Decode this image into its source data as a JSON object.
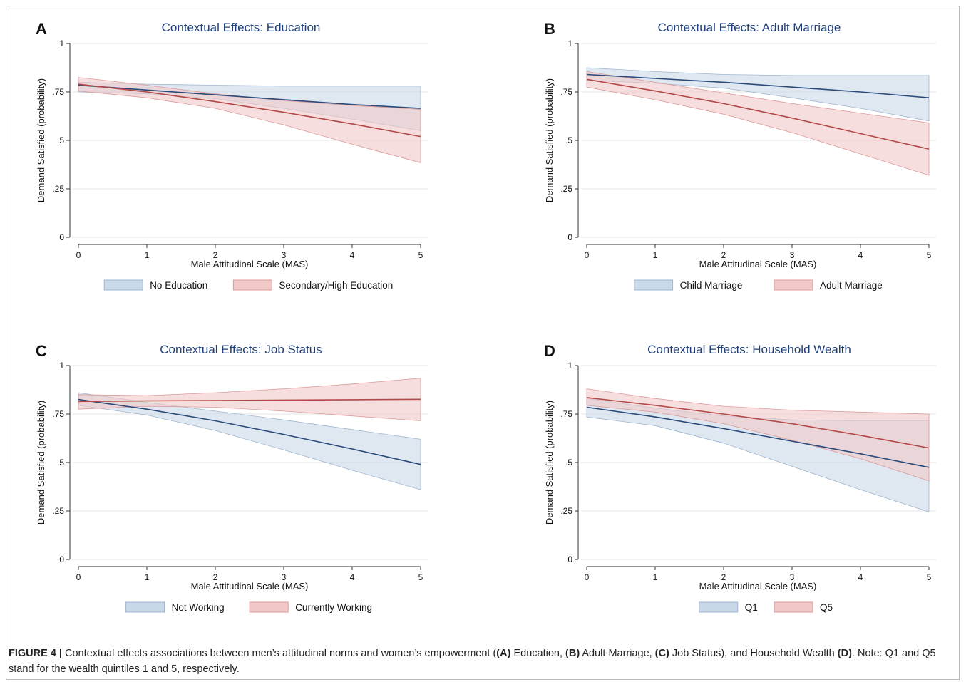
{
  "figure": {
    "caption_label": "FIGURE 4 |",
    "caption_parts": [
      {
        "text": " Contextual effects associations between men’s attitudinal norms and women’s empowerment (",
        "bold": false
      },
      {
        "text": "(A)",
        "bold": true
      },
      {
        "text": " Education, ",
        "bold": false
      },
      {
        "text": "(B)",
        "bold": true
      },
      {
        "text": " Adult Marriage, ",
        "bold": false
      },
      {
        "text": "(C)",
        "bold": true
      },
      {
        "text": " Job Status), and Household Wealth ",
        "bold": false
      },
      {
        "text": "(D)",
        "bold": true
      },
      {
        "text": ". Note: Q1 and Q5 stand for the wealth quintiles 1 and 5, respectively.",
        "bold": false
      }
    ]
  },
  "colors": {
    "blue_line": "#2a4a7a",
    "blue_band": "#c9d8e8",
    "blue_band_edge": "#9fb6cf",
    "red_line": "#b34848",
    "red_band": "#f1c8c8",
    "red_band_edge": "#dc9a9a",
    "title": "#1f3f78",
    "grid": "#e4e4e4"
  },
  "chart_data": [
    {
      "panel_letter": "A",
      "type": "line",
      "title": "Contextual Effects: Education",
      "xlabel": "Male Attitudinal Scale (MAS)",
      "ylabel": "Demand Satisfied (probability)",
      "xlim": [
        0,
        5
      ],
      "ylim": [
        0,
        1
      ],
      "x_ticks": [
        0,
        1,
        2,
        3,
        4,
        5
      ],
      "x_tick_labels": [
        "0",
        "1",
        "2",
        "3",
        "4",
        "5"
      ],
      "y_ticks": [
        0,
        0.25,
        0.5,
        0.75,
        1
      ],
      "y_tick_labels": [
        "0",
        ".25",
        ".5",
        ".75",
        "1"
      ],
      "grid": true,
      "legend_position": "bottom",
      "series": [
        {
          "name": "No Education",
          "color": "blue",
          "x": [
            0,
            1,
            2,
            3,
            4,
            5
          ],
          "y": [
            0.785,
            0.76,
            0.735,
            0.71,
            0.685,
            0.665
          ],
          "lower": [
            0.75,
            0.74,
            0.715,
            0.665,
            0.61,
            0.55
          ],
          "upper": [
            0.8,
            0.79,
            0.785,
            0.78,
            0.78,
            0.78
          ]
        },
        {
          "name": "Secondary/High Education",
          "color": "red",
          "x": [
            0,
            1,
            2,
            3,
            4,
            5
          ],
          "y": [
            0.79,
            0.75,
            0.7,
            0.645,
            0.585,
            0.52
          ],
          "lower": [
            0.755,
            0.72,
            0.665,
            0.58,
            0.48,
            0.385
          ],
          "upper": [
            0.825,
            0.785,
            0.74,
            0.705,
            0.68,
            0.66
          ]
        }
      ]
    },
    {
      "panel_letter": "B",
      "type": "line",
      "title": "Contextual Effects: Adult Marriage",
      "xlabel": "Male Attitudinal Scale (MAS)",
      "ylabel": "Demand Satisfied (probability)",
      "xlim": [
        0,
        5
      ],
      "ylim": [
        0,
        1
      ],
      "x_ticks": [
        0,
        1,
        2,
        3,
        4,
        5
      ],
      "x_tick_labels": [
        "0",
        "1",
        "2",
        "3",
        "4",
        "5"
      ],
      "y_ticks": [
        0,
        0.25,
        0.5,
        0.75,
        1
      ],
      "y_tick_labels": [
        "0",
        ".25",
        ".5",
        ".75",
        "1"
      ],
      "grid": true,
      "legend_position": "bottom",
      "series": [
        {
          "name": "Child Marriage",
          "color": "blue",
          "x": [
            0,
            1,
            2,
            3,
            4,
            5
          ],
          "y": [
            0.84,
            0.82,
            0.8,
            0.775,
            0.75,
            0.72
          ],
          "lower": [
            0.81,
            0.795,
            0.77,
            0.72,
            0.665,
            0.6
          ],
          "upper": [
            0.875,
            0.855,
            0.84,
            0.835,
            0.835,
            0.835
          ]
        },
        {
          "name": "Adult Marriage",
          "color": "red",
          "x": [
            0,
            1,
            2,
            3,
            4,
            5
          ],
          "y": [
            0.815,
            0.755,
            0.69,
            0.615,
            0.535,
            0.455
          ],
          "lower": [
            0.775,
            0.71,
            0.635,
            0.54,
            0.43,
            0.32
          ],
          "upper": [
            0.855,
            0.8,
            0.745,
            0.69,
            0.64,
            0.59
          ]
        }
      ]
    },
    {
      "panel_letter": "C",
      "type": "line",
      "title": "Contextual Effects: Job Status",
      "xlabel": "Male Attitudinal Scale (MAS)",
      "ylabel": "Demand Satisfied (probability)",
      "xlim": [
        0,
        5
      ],
      "ylim": [
        0,
        1
      ],
      "x_ticks": [
        0,
        1,
        2,
        3,
        4,
        5
      ],
      "x_tick_labels": [
        "0",
        "1",
        "2",
        "3",
        "4",
        "5"
      ],
      "y_ticks": [
        0,
        0.25,
        0.5,
        0.75,
        1
      ],
      "y_tick_labels": [
        "0",
        ".25",
        ".5",
        ".75",
        "1"
      ],
      "grid": true,
      "legend_position": "bottom",
      "series": [
        {
          "name": "Not Working",
          "color": "blue",
          "x": [
            0,
            1,
            2,
            3,
            4,
            5
          ],
          "y": [
            0.825,
            0.775,
            0.715,
            0.645,
            0.57,
            0.49
          ],
          "lower": [
            0.795,
            0.745,
            0.665,
            0.565,
            0.46,
            0.36
          ],
          "upper": [
            0.86,
            0.81,
            0.765,
            0.72,
            0.67,
            0.62
          ]
        },
        {
          "name": "Currently Working",
          "color": "red",
          "x": [
            0,
            1,
            2,
            3,
            4,
            5
          ],
          "y": [
            0.815,
            0.818,
            0.82,
            0.822,
            0.824,
            0.826
          ],
          "lower": [
            0.775,
            0.79,
            0.785,
            0.765,
            0.74,
            0.715
          ],
          "upper": [
            0.85,
            0.845,
            0.86,
            0.88,
            0.905,
            0.935
          ]
        }
      ]
    },
    {
      "panel_letter": "D",
      "type": "line",
      "title": "Contextual Effects: Household Wealth",
      "xlabel": "Male Attitudinal Scale (MAS)",
      "ylabel": "Demand Satisfied (probability)",
      "xlim": [
        0,
        5
      ],
      "ylim": [
        0,
        1
      ],
      "x_ticks": [
        0,
        1,
        2,
        3,
        4,
        5
      ],
      "x_tick_labels": [
        "0",
        "1",
        "2",
        "3",
        "4",
        "5"
      ],
      "y_ticks": [
        0,
        0.25,
        0.5,
        0.75,
        1
      ],
      "y_tick_labels": [
        "0",
        ".25",
        ".5",
        ".75",
        "1"
      ],
      "grid": true,
      "legend_position": "bottom",
      "series": [
        {
          "name": "Q1",
          "color": "blue",
          "x": [
            0,
            1,
            2,
            3,
            4,
            5
          ],
          "y": [
            0.785,
            0.735,
            0.675,
            0.61,
            0.545,
            0.475
          ],
          "lower": [
            0.735,
            0.69,
            0.6,
            0.48,
            0.36,
            0.245
          ],
          "upper": [
            0.83,
            0.78,
            0.74,
            0.72,
            0.715,
            0.715
          ]
        },
        {
          "name": "Q5",
          "color": "red",
          "x": [
            0,
            1,
            2,
            3,
            4,
            5
          ],
          "y": [
            0.835,
            0.795,
            0.75,
            0.7,
            0.64,
            0.575
          ],
          "lower": [
            0.795,
            0.76,
            0.7,
            0.615,
            0.52,
            0.405
          ],
          "upper": [
            0.88,
            0.83,
            0.79,
            0.77,
            0.76,
            0.75
          ]
        }
      ]
    }
  ]
}
